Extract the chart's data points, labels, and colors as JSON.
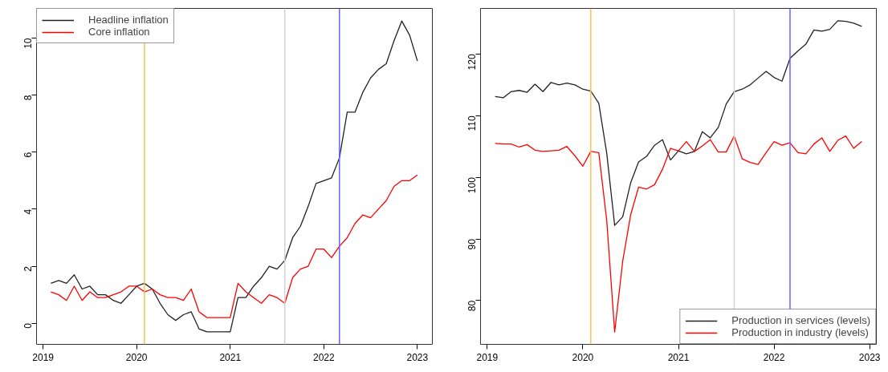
{
  "chart_data": [
    {
      "type": "line",
      "x": [
        2019.083,
        2019.167,
        2019.25,
        2019.333,
        2019.417,
        2019.5,
        2019.583,
        2019.667,
        2019.75,
        2019.833,
        2019.917,
        2020.0,
        2020.083,
        2020.167,
        2020.25,
        2020.333,
        2020.417,
        2020.5,
        2020.583,
        2020.667,
        2020.75,
        2020.833,
        2020.917,
        2021.0,
        2021.083,
        2021.167,
        2021.25,
        2021.333,
        2021.417,
        2021.5,
        2021.583,
        2021.667,
        2021.75,
        2021.833,
        2021.917,
        2022.0,
        2022.083,
        2022.167,
        2022.25,
        2022.333,
        2022.417,
        2022.5,
        2022.583,
        2022.667,
        2022.75,
        2022.833,
        2022.917,
        2023.0
      ],
      "series": [
        {
          "name": "Headline inflation",
          "color": "#222222",
          "values": [
            1.4,
            1.5,
            1.4,
            1.7,
            1.2,
            1.3,
            1.0,
            1.0,
            0.8,
            0.7,
            1.0,
            1.3,
            1.4,
            1.2,
            0.7,
            0.3,
            0.1,
            0.3,
            0.4,
            -0.2,
            -0.3,
            -0.3,
            -0.3,
            -0.3,
            0.9,
            0.9,
            1.3,
            1.6,
            2.0,
            1.9,
            2.2,
            3.0,
            3.4,
            4.1,
            4.9,
            5.0,
            5.1,
            5.8,
            7.4,
            7.4,
            8.1,
            8.6,
            8.9,
            9.1,
            9.9,
            10.6,
            10.1,
            9.2
          ]
        },
        {
          "name": "Core inflation",
          "color": "#ff0000",
          "values": [
            1.1,
            1.0,
            0.8,
            1.3,
            0.8,
            1.1,
            0.9,
            0.9,
            1.0,
            1.1,
            1.3,
            1.3,
            1.1,
            1.2,
            1.0,
            0.9,
            0.9,
            0.8,
            1.2,
            0.4,
            0.2,
            0.2,
            0.2,
            0.2,
            1.4,
            1.1,
            0.9,
            0.7,
            1.0,
            0.9,
            0.7,
            1.6,
            1.9,
            2.0,
            2.6,
            2.6,
            2.3,
            2.7,
            3.0,
            3.5,
            3.8,
            3.7,
            4.0,
            4.3,
            4.8,
            5.0,
            5.0,
            5.2
          ]
        }
      ],
      "xlim": [
        2018.93,
        2023.16
      ],
      "xticks": [
        2019,
        2020,
        2021,
        2022,
        2023
      ],
      "ylim": [
        -0.74,
        11.04
      ],
      "yticks": [
        0,
        2,
        4,
        6,
        8,
        10
      ],
      "ref_lines": [
        {
          "axis": "x",
          "value": 2020.083,
          "color": "#ffc04d"
        },
        {
          "axis": "x",
          "value": 2021.583,
          "color": "#d3d3d3"
        },
        {
          "axis": "x",
          "value": 2022.167,
          "color": "#6464ff"
        }
      ],
      "grid": false,
      "legend": "top left",
      "line_style": "solid",
      "marker": "none"
    },
    {
      "type": "line",
      "x": [
        2019.083,
        2019.167,
        2019.25,
        2019.333,
        2019.417,
        2019.5,
        2019.583,
        2019.667,
        2019.75,
        2019.833,
        2019.917,
        2020.0,
        2020.083,
        2020.167,
        2020.25,
        2020.333,
        2020.417,
        2020.5,
        2020.583,
        2020.667,
        2020.75,
        2020.833,
        2020.917,
        2021.0,
        2021.083,
        2021.167,
        2021.25,
        2021.333,
        2021.417,
        2021.5,
        2021.583,
        2021.667,
        2021.75,
        2021.833,
        2021.917,
        2022.0,
        2022.083,
        2022.167,
        2022.25,
        2022.333,
        2022.417,
        2022.5,
        2022.583,
        2022.667,
        2022.75,
        2022.833,
        2022.917
      ],
      "series": [
        {
          "name": "Production in services (levels)",
          "color": "#222222",
          "values": [
            113.1,
            112.9,
            113.9,
            114.1,
            113.8,
            115.1,
            113.9,
            115.4,
            115.0,
            115.3,
            115.0,
            114.3,
            114.0,
            112.0,
            103.9,
            92.2,
            93.6,
            99.1,
            102.5,
            103.4,
            105.2,
            106.1,
            102.8,
            104.3,
            103.8,
            104.2,
            107.4,
            106.4,
            108.1,
            111.9,
            113.9,
            114.3,
            115.0,
            116.1,
            117.2,
            116.2,
            115.6,
            119.3,
            120.5,
            121.6,
            123.9,
            123.7,
            124.0,
            125.4,
            125.3,
            125.0,
            124.5
          ]
        },
        {
          "name": "Production in industry (levels)",
          "color": "#ff0000",
          "values": [
            105.5,
            105.4,
            105.4,
            104.9,
            105.3,
            104.4,
            104.2,
            104.3,
            104.4,
            105.0,
            103.5,
            101.8,
            104.2,
            104.0,
            93.0,
            74.9,
            86.4,
            93.9,
            98.4,
            98.1,
            98.8,
            101.3,
            104.7,
            104.3,
            105.8,
            104.2,
            105.1,
            106.1,
            104.1,
            104.1,
            106.7,
            103.0,
            102.4,
            102.1,
            104.0,
            105.8,
            105.2,
            105.6,
            104.0,
            103.8,
            105.4,
            106.4,
            104.2,
            106.0,
            106.7,
            104.7,
            105.8
          ]
        }
      ],
      "xlim": [
        2018.93,
        2023.07
      ],
      "xticks": [
        2019,
        2020,
        2021,
        2022,
        2023
      ],
      "ylim": [
        72.9,
        127.4
      ],
      "yticks": [
        80,
        90,
        100,
        110,
        120
      ],
      "ref_lines": [
        {
          "axis": "x",
          "value": 2020.083,
          "color": "#ffc04d"
        },
        {
          "axis": "x",
          "value": 2021.583,
          "color": "#d3d3d3"
        },
        {
          "axis": "x",
          "value": 2022.167,
          "color": "#6464ff"
        }
      ],
      "grid": false,
      "legend": "bottom right",
      "line_style": "solid",
      "marker": "none"
    }
  ]
}
